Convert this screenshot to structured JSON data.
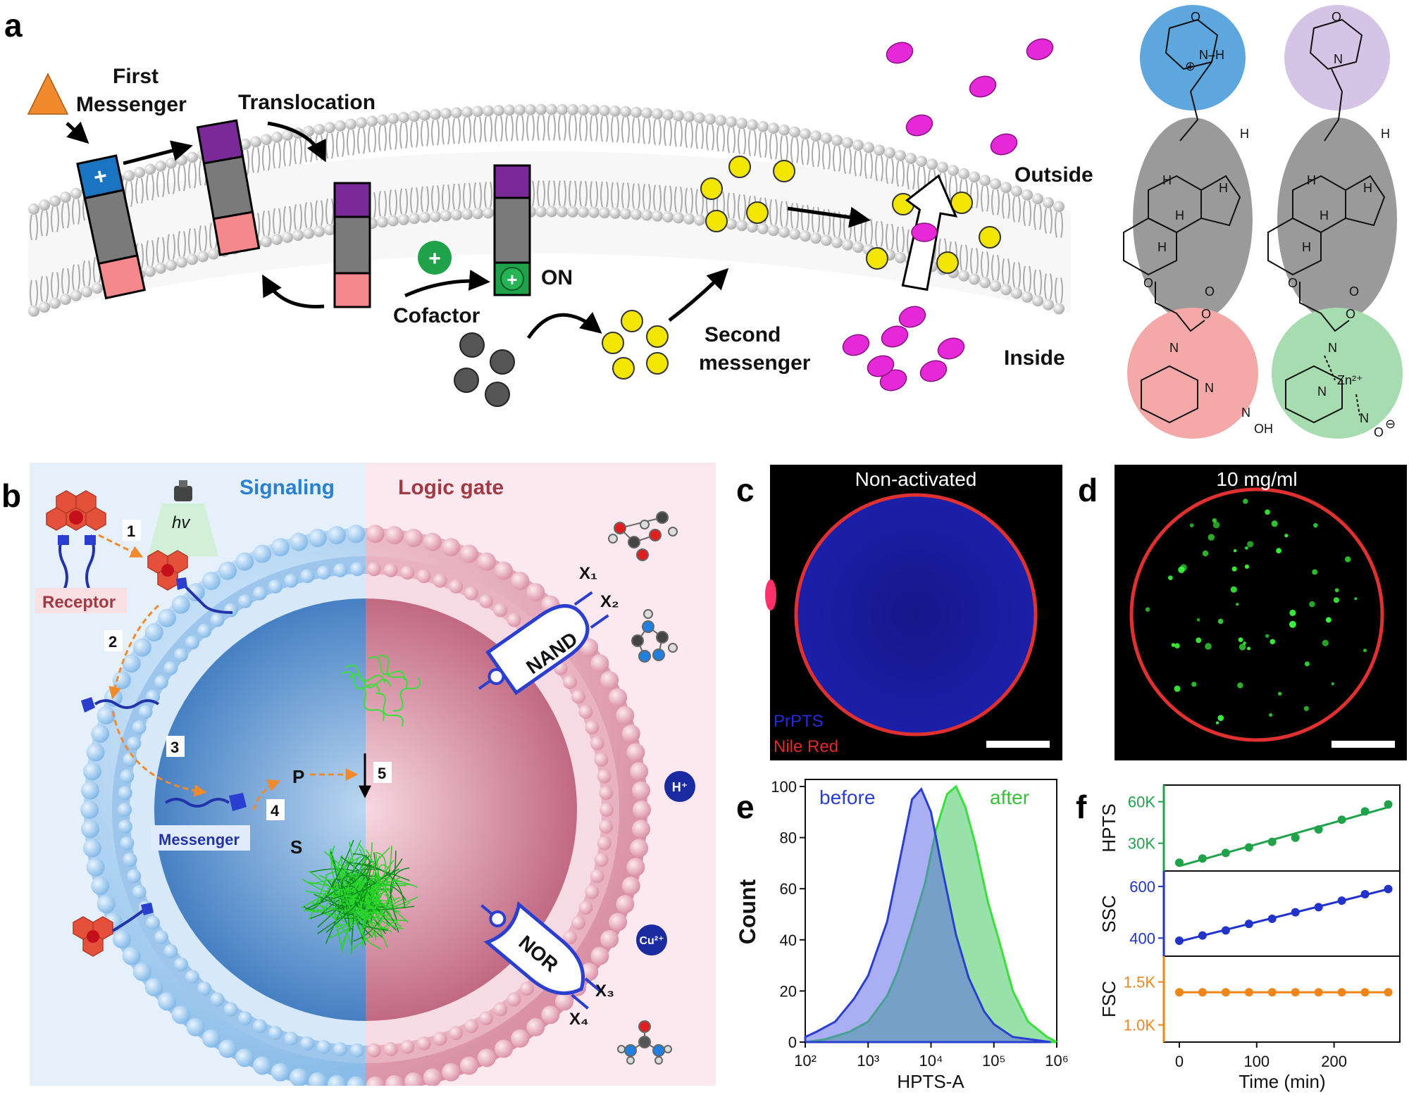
{
  "panel_letters": {
    "a": "a",
    "b": "b",
    "c": "c",
    "d": "d",
    "e": "e",
    "f": "f"
  },
  "panel_a": {
    "first_messenger": [
      "First",
      "Messenger"
    ],
    "translocation": "Translocation",
    "outside": "Outside",
    "inside": "Inside",
    "cofactor": "Cofactor",
    "on": "ON",
    "second_messenger": [
      "Second",
      "messenger"
    ],
    "plus": "+",
    "chem_labels": {
      "N": "N",
      "H": "H",
      "NH": "N–H",
      "O": "O",
      "OH": "OH",
      "Zn": "Zn²⁺",
      "minus": "⊖",
      "plus": "⊕"
    },
    "colors": {
      "cation": "#1a74c2",
      "purple": "#7a2a98",
      "pink": "#f4888c",
      "gray": "#7a7a7a",
      "cofactor": "#1fa24a",
      "yellow": "#f2e600",
      "magenta": "#e629d8",
      "arrow": "#f08a2c"
    }
  },
  "panel_b": {
    "signaling": "Signaling",
    "logic_gate": "Logic gate",
    "hv": "hv",
    "receptor": "Receptor",
    "messenger": "Messenger",
    "steps": [
      "1",
      "2",
      "3",
      "4",
      "5"
    ],
    "P": "P",
    "S": "S",
    "nand": "NAND",
    "nor": "NOR",
    "x1": "X₁",
    "x2": "X₂",
    "x3": "X₃",
    "x4": "X₄",
    "h_plus": "H⁺",
    "cu": "Cu²⁺",
    "colors": {
      "left_bg": "#e6f0fb",
      "right_bg": "#fbe9ef",
      "signal_text": "#2a7fd0",
      "logic_text": "#a23a46"
    }
  },
  "panel_c": {
    "title": "Non-activated",
    "legend": [
      "PrPTS",
      "Nile Red"
    ]
  },
  "panel_d": {
    "title": "10 mg/ml"
  },
  "panel_e": {
    "chart_data": {
      "type": "area",
      "xlabel": "HPTS-A",
      "ylabel": "Count",
      "x_scale": "log",
      "xlim": [
        100,
        1000000
      ],
      "ylim": [
        0,
        100
      ],
      "x_ticks": [
        "10²",
        "10³",
        "10⁴",
        "10⁵",
        "10⁶"
      ],
      "y_ticks": [
        "0",
        "20",
        "40",
        "60",
        "80",
        "100"
      ],
      "series": [
        {
          "name": "before",
          "color": "#3a4fd8",
          "x": [
            80,
            150,
            300,
            600,
            1000,
            2000,
            3000,
            5000,
            7000,
            10000,
            15000,
            25000,
            40000,
            70000,
            100000,
            200000,
            400000,
            800000
          ],
          "values": [
            2,
            4,
            8,
            17,
            26,
            47,
            68,
            95,
            99,
            90,
            68,
            42,
            25,
            12,
            7,
            2,
            1,
            0
          ]
        },
        {
          "name": "after",
          "color": "#3ed83a",
          "x": [
            80,
            200,
            500,
            1000,
            2000,
            3000,
            5000,
            8000,
            12000,
            18000,
            25000,
            35000,
            50000,
            80000,
            120000,
            200000,
            350000,
            700000,
            1000000
          ],
          "values": [
            0,
            1,
            4,
            8,
            18,
            28,
            45,
            62,
            83,
            97,
            100,
            92,
            78,
            55,
            40,
            20,
            8,
            2,
            0
          ]
        }
      ]
    }
  },
  "panel_f": {
    "chart_data": [
      {
        "type": "scatter",
        "ylabel": "HPTS",
        "color": "#1fa24a",
        "y_ticks": [
          "30K",
          "60K"
        ],
        "ylim": [
          10000,
          72000
        ],
        "x": [
          0,
          30,
          60,
          90,
          120,
          150,
          180,
          210,
          240,
          270
        ],
        "values": [
          16000,
          19000,
          23000,
          27000,
          31000,
          34000,
          40000,
          47000,
          53000,
          58000
        ]
      },
      {
        "type": "scatter",
        "ylabel": "SSC",
        "color": "#2233cc",
        "y_ticks": [
          "400",
          "600"
        ],
        "ylim": [
          330,
          660
        ],
        "x": [
          0,
          30,
          60,
          90,
          120,
          150,
          180,
          210,
          240,
          270
        ],
        "values": [
          390,
          410,
          430,
          455,
          475,
          500,
          520,
          545,
          570,
          590
        ]
      },
      {
        "type": "scatter",
        "ylabel": "FSC",
        "color": "#f0861a",
        "y_ticks": [
          "1.0K",
          "1.5K"
        ],
        "ylim": [
          800,
          1800
        ],
        "x": [
          0,
          30,
          60,
          90,
          120,
          150,
          180,
          210,
          240,
          270
        ],
        "values": [
          1380,
          1380,
          1380,
          1380,
          1380,
          1380,
          1380,
          1380,
          1380,
          1380
        ]
      }
    ],
    "xlabel": "Time (min)",
    "x_ticks": [
      "0",
      "100",
      "200"
    ],
    "xlim": [
      -20,
      285
    ]
  }
}
